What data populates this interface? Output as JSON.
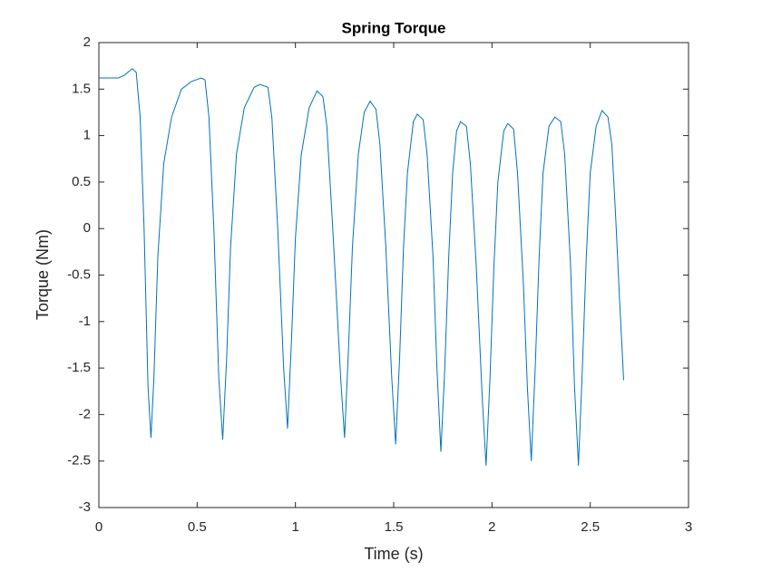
{
  "chart_data": {
    "type": "line",
    "title": "Spring Torque",
    "x_label": "Time (s)",
    "y_label": "Torque (Nm)",
    "xlim": [
      0,
      3
    ],
    "xticks": [
      0,
      0.5,
      1,
      1.5,
      2,
      2.5,
      3
    ],
    "ylim": [
      -3,
      2
    ],
    "yticks": [
      -3,
      -2.5,
      -2,
      -1.5,
      -1,
      -0.5,
      0,
      0.5,
      1,
      1.5,
      2
    ],
    "grid": false,
    "x": [
      0,
      0.1,
      0.13,
      0.17,
      0.19,
      0.21,
      0.23,
      0.25,
      0.265,
      0.28,
      0.3,
      0.33,
      0.37,
      0.42,
      0.47,
      0.52,
      0.54,
      0.56,
      0.585,
      0.61,
      0.63,
      0.65,
      0.67,
      0.7,
      0.74,
      0.79,
      0.82,
      0.86,
      0.88,
      0.91,
      0.94,
      0.96,
      0.98,
      1.0,
      1.03,
      1.07,
      1.11,
      1.14,
      1.16,
      1.19,
      1.23,
      1.25,
      1.27,
      1.29,
      1.32,
      1.35,
      1.38,
      1.41,
      1.43,
      1.46,
      1.49,
      1.51,
      1.53,
      1.55,
      1.57,
      1.6,
      1.62,
      1.65,
      1.67,
      1.7,
      1.72,
      1.74,
      1.76,
      1.78,
      1.8,
      1.82,
      1.84,
      1.87,
      1.89,
      1.92,
      1.95,
      1.97,
      1.99,
      2.01,
      2.03,
      2.06,
      2.08,
      2.11,
      2.13,
      2.16,
      2.18,
      2.2,
      2.22,
      2.24,
      2.26,
      2.29,
      2.32,
      2.35,
      2.37,
      2.4,
      2.42,
      2.44,
      2.46,
      2.48,
      2.5,
      2.53,
      2.56,
      2.59,
      2.61,
      2.63,
      2.65,
      2.67
    ],
    "series": [
      {
        "name": "Spring Torque",
        "color": "#0072bd",
        "values": [
          1.62,
          1.62,
          1.65,
          1.72,
          1.68,
          1.2,
          0,
          -1.7,
          -2.25,
          -1.6,
          -0.3,
          0.7,
          1.2,
          1.5,
          1.58,
          1.62,
          1.6,
          1.2,
          0,
          -1.6,
          -2.27,
          -1.4,
          -0.2,
          0.8,
          1.3,
          1.52,
          1.55,
          1.52,
          1.2,
          0,
          -1.5,
          -2.15,
          -1.2,
          -0.1,
          0.8,
          1.3,
          1.48,
          1.42,
          1.1,
          0,
          -1.6,
          -2.25,
          -1.3,
          -0.2,
          0.8,
          1.25,
          1.37,
          1.28,
          0.9,
          -0.2,
          -1.6,
          -2.32,
          -1.4,
          -0.2,
          0.6,
          1.15,
          1.23,
          1.17,
          0.8,
          -0.3,
          -1.5,
          -2.4,
          -1.5,
          -0.3,
          0.6,
          1.05,
          1.15,
          1.1,
          0.7,
          -0.4,
          -1.8,
          -2.55,
          -1.6,
          -0.4,
          0.5,
          1.05,
          1.13,
          1.07,
          0.6,
          -0.6,
          -1.7,
          -2.5,
          -1.5,
          -0.3,
          0.6,
          1.1,
          1.2,
          1.15,
          0.8,
          -0.4,
          -1.7,
          -2.55,
          -1.5,
          -0.3,
          0.6,
          1.1,
          1.27,
          1.2,
          0.9,
          0.1,
          -0.8,
          -1.63
        ]
      }
    ]
  }
}
